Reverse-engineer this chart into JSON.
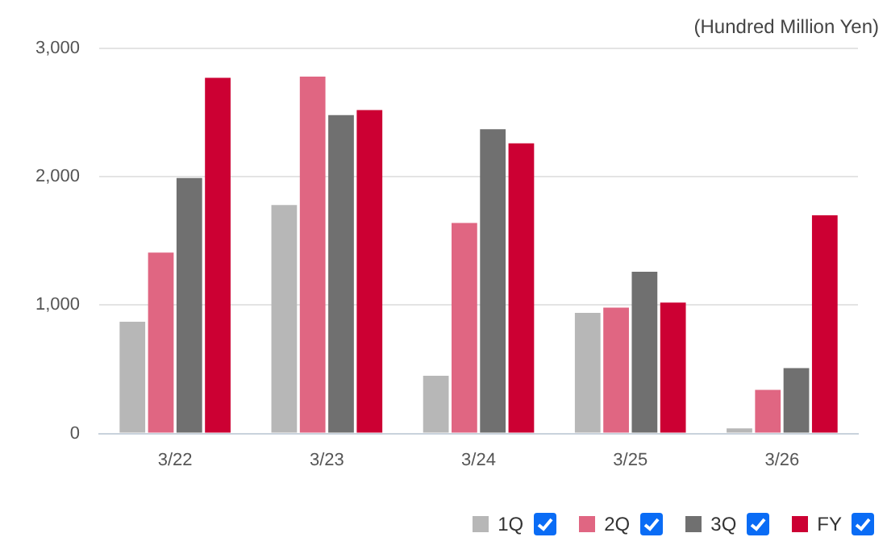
{
  "chart_data": {
    "type": "bar",
    "ylabel": "(Hundred Million Yen)",
    "categories": [
      "3/22",
      "3/23",
      "3/24",
      "3/25",
      "3/26"
    ],
    "series": [
      {
        "name": "1Q",
        "color": "#b7b7b7",
        "values": [
          870,
          1780,
          450,
          940,
          40
        ]
      },
      {
        "name": "2Q",
        "color": "#e06682",
        "values": [
          1410,
          2780,
          1640,
          980,
          340
        ]
      },
      {
        "name": "3Q",
        "color": "#707070",
        "values": [
          1990,
          2480,
          2370,
          1260,
          510
        ]
      },
      {
        "name": "FY",
        "color": "#cc0033",
        "values": [
          2770,
          2520,
          2260,
          1020,
          1700
        ]
      }
    ],
    "ylim": [
      0,
      3000
    ],
    "yticks": [
      {
        "value": 0,
        "label": "0"
      },
      {
        "value": 1000,
        "label": "1,000"
      },
      {
        "value": 2000,
        "label": "2,000"
      },
      {
        "value": 3000,
        "label": "3,000"
      }
    ],
    "grid": "y",
    "legend": "bottom right"
  }
}
